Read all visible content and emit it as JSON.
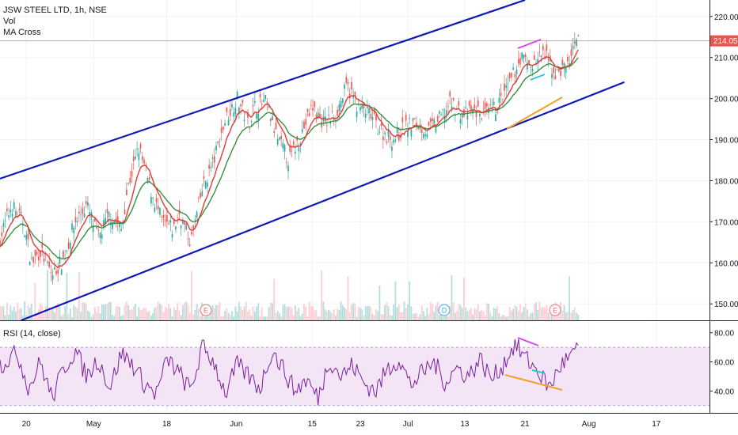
{
  "legend": {
    "symbol_line": "JSW STEEL LTD, 1h, NSE",
    "vol": "Vol",
    "ma": "MA Cross"
  },
  "rsi_label": "RSI (14, close)",
  "price_axis": {
    "ticks": [
      "220.00",
      "210.00",
      "200.00",
      "190.00",
      "180.00",
      "170.00",
      "160.00",
      "150.00"
    ],
    "tick_values": [
      220,
      210,
      200,
      190,
      180,
      170,
      160,
      150
    ],
    "last_price": "214.05",
    "last_price_value": 214.05
  },
  "rsi_axis": {
    "ticks": [
      "80.00",
      "60.00",
      "40.00"
    ],
    "tick_values": [
      80,
      60,
      40
    ],
    "band_upper": 70,
    "band_lower": 30
  },
  "time_axis": {
    "ticks": [
      "20",
      "May",
      "18",
      "Jun",
      "15",
      "23",
      "Jul",
      "13",
      "21",
      "Aug",
      "17"
    ]
  },
  "event_markers": [
    {
      "label": "E",
      "color": "#e57373"
    },
    {
      "label": "D",
      "color": "#42a5f5"
    },
    {
      "label": "E",
      "color": "#e57373"
    }
  ],
  "colors": {
    "candle_up": "#26a69a",
    "candle_down": "#ef5350",
    "ma_fast": "#e53935",
    "ma_slow": "#388e3c",
    "channel": "#0d1bb5",
    "rsi_line": "#7b1fa2",
    "rsi_band": "#f3e5f5",
    "price_line": "#f48fb1",
    "magenta_trend": "#e040fb",
    "cyan_trend": "#26c6da",
    "orange_trend": "#f59f28"
  },
  "chart_data": {
    "type": "line",
    "title": "JSW STEEL LTD, 1h, NSE",
    "price_ylim": [
      146,
      224
    ],
    "rsi_ylim": [
      25,
      88
    ],
    "price_keypoints": {
      "x": [
        0,
        0.02,
        0.04,
        0.055,
        0.07,
        0.09,
        0.11,
        0.13,
        0.15,
        0.17,
        0.19,
        0.21,
        0.22,
        0.24,
        0.26,
        0.28,
        0.3,
        0.31,
        0.33,
        0.35,
        0.37,
        0.39,
        0.41,
        0.43,
        0.44,
        0.46,
        0.48,
        0.5,
        0.52,
        0.54,
        0.56,
        0.58,
        0.6,
        0.62,
        0.64,
        0.66,
        0.68,
        0.7,
        0.72,
        0.74,
        0.76,
        0.78,
        0.8,
        0.82,
        0.84,
        0.86,
        0.88,
        0.9,
        0.92,
        0.94,
        0.96,
        0.98,
        1.0
      ],
      "y": [
        166,
        174,
        170,
        160,
        163,
        157,
        161,
        170,
        174,
        166,
        172,
        168,
        178,
        188,
        178,
        170,
        168,
        172,
        165,
        178,
        185,
        195,
        200,
        194,
        198,
        199,
        190,
        185,
        191,
        198,
        194,
        196,
        203,
        198,
        196,
        192,
        190,
        193,
        194,
        192,
        195,
        199,
        196,
        197,
        196,
        198,
        203,
        210,
        208,
        211,
        206,
        208,
        214
      ]
    },
    "channel_upper": {
      "x": [
        0,
        0.74
      ],
      "y": [
        180.5,
        224
      ]
    },
    "channel_lower": {
      "x": [
        0.03,
        0.88
      ],
      "y": [
        146,
        204
      ]
    },
    "rsi_keypoints": {
      "x": [
        0,
        0.03,
        0.05,
        0.07,
        0.09,
        0.11,
        0.13,
        0.15,
        0.17,
        0.19,
        0.21,
        0.23,
        0.25,
        0.27,
        0.29,
        0.31,
        0.33,
        0.35,
        0.37,
        0.39,
        0.41,
        0.43,
        0.45,
        0.47,
        0.49,
        0.51,
        0.53,
        0.55,
        0.57,
        0.59,
        0.61,
        0.63,
        0.65,
        0.67,
        0.69,
        0.71,
        0.73,
        0.75,
        0.77,
        0.79,
        0.81,
        0.83,
        0.85,
        0.87,
        0.89,
        0.91,
        0.93,
        0.95,
        0.97,
        1.0
      ],
      "y": [
        58,
        66,
        42,
        60,
        35,
        55,
        68,
        50,
        62,
        42,
        66,
        58,
        45,
        38,
        62,
        52,
        40,
        70,
        60,
        38,
        58,
        50,
        42,
        68,
        55,
        40,
        48,
        35,
        62,
        50,
        58,
        45,
        40,
        55,
        62,
        44,
        52,
        60,
        46,
        56,
        50,
        62,
        48,
        58,
        72,
        62,
        54,
        42,
        58,
        68
      ]
    }
  }
}
